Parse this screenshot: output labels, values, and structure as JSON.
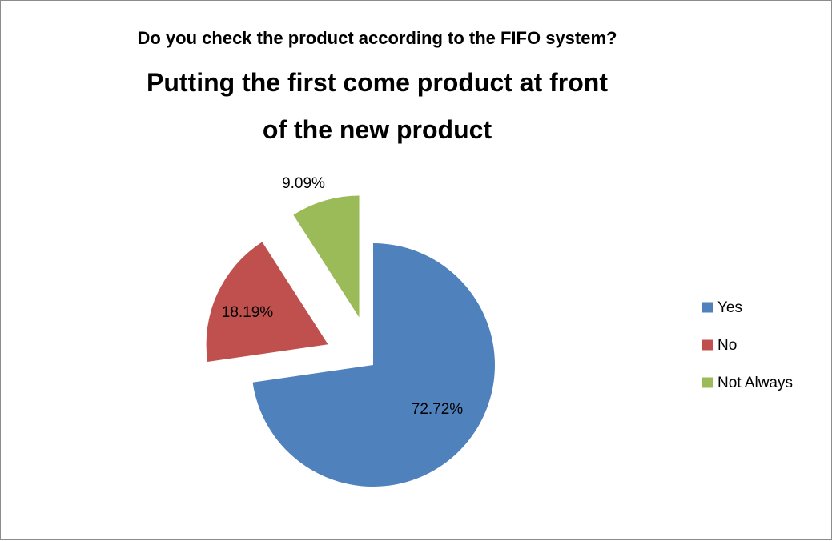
{
  "chart_data": {
    "type": "pie",
    "title_lines": [
      "Do you check the product according to the FIFO system?",
      "Putting the first come product at front",
      "of the new product"
    ],
    "categories": [
      "Yes",
      "No",
      "Not Always"
    ],
    "values": [
      72.72,
      18.19,
      9.09
    ],
    "labels": [
      "72.72%",
      "18.19%",
      "9.09%"
    ],
    "colors": [
      "#4F81BD",
      "#C0504D",
      "#9BBB59"
    ],
    "exploded": true,
    "legend_position": "right"
  }
}
